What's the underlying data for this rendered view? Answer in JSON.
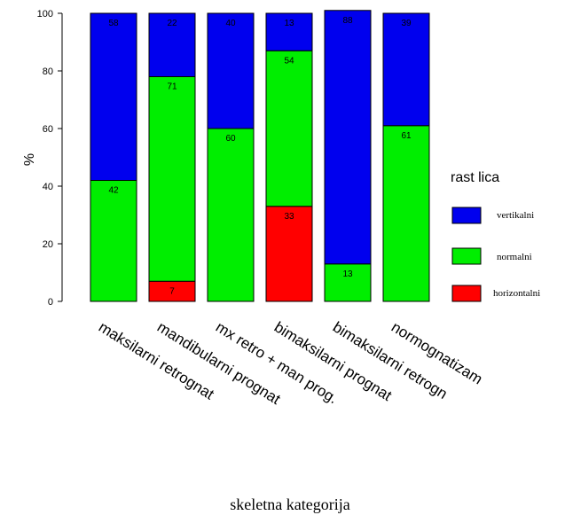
{
  "chart_data": {
    "type": "bar",
    "stacked": true,
    "categories": [
      "maksilarni retrognat",
      "mandibularni prognat",
      "mx retro + man prog.",
      "bimaksilarni prognat",
      "bimaksilarni retrogn",
      "normognatizam"
    ],
    "series": [
      {
        "name": "horizontalni",
        "color": "#ff0000",
        "values": [
          0,
          7,
          0,
          33,
          0,
          0
        ],
        "labels": [
          "",
          "7",
          "",
          "33",
          "",
          ""
        ]
      },
      {
        "name": "normalni",
        "color": "#00ee00",
        "values": [
          42,
          71,
          60,
          54,
          13,
          61
        ],
        "labels": [
          "42",
          "71",
          "60",
          "54",
          "13",
          "61"
        ]
      },
      {
        "name": "vertikalni",
        "color": "#0000ee",
        "values": [
          58,
          22,
          40,
          13,
          88,
          39
        ],
        "labels": [
          "58",
          "22",
          "40",
          "13",
          "88",
          "39"
        ]
      }
    ],
    "ylim": [
      0,
      100
    ],
    "yticks": [
      "0",
      "20",
      "40",
      "60",
      "80",
      "100"
    ],
    "ylabel": "%",
    "xlabel": "skeletna kategorija",
    "legend": {
      "title": "rast lica",
      "position": "right",
      "order": [
        "vertikalni",
        "normalni",
        "horizontalni"
      ]
    },
    "grid": false
  }
}
